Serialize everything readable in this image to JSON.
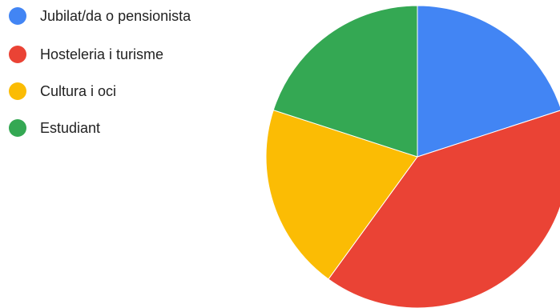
{
  "chart_data": {
    "type": "pie",
    "title": "",
    "categories": [
      "Jubilat/da o pensionista",
      "Hosteleria i turisme",
      "Cultura i oci",
      "Estudiant"
    ],
    "values": [
      20,
      40,
      20,
      20
    ],
    "colors": [
      "#4285f4",
      "#ea4335",
      "#fbbc04",
      "#34a853"
    ],
    "legend_position": "left",
    "start_angle": "12 o'clock",
    "direction": "clockwise"
  }
}
